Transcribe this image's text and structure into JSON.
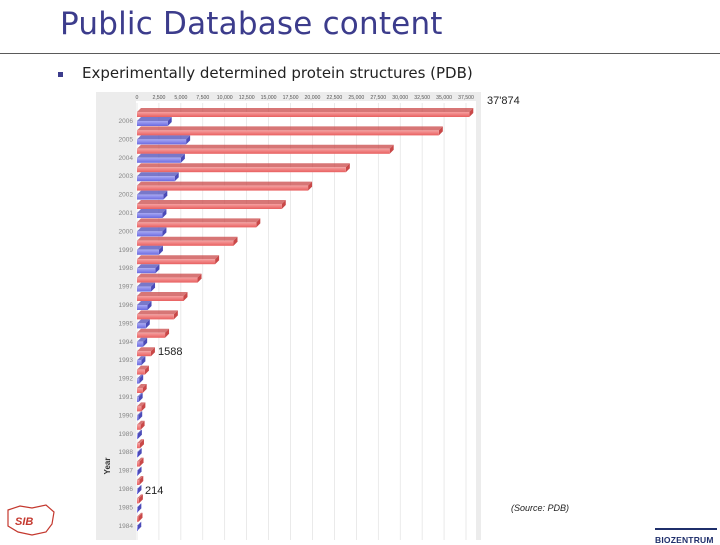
{
  "slide": {
    "title": "Public Database content",
    "bullet": "Experimentally determined protein structures (PDB)"
  },
  "annotations": {
    "max_label": "37'874",
    "mid_label": "1588",
    "low_label": "214",
    "source": "(Source: PDB)"
  },
  "logos": {
    "left": "SIB",
    "right": "BIOZENTRUM"
  },
  "colors": {
    "title": "#3c3c8c",
    "total_series": "#f06e6e",
    "yearly_series": "#7a7ae6"
  },
  "chart_data": {
    "type": "bar",
    "orientation": "horizontal",
    "title": "",
    "xlabel": "",
    "ylabel": "Year",
    "xlim": [
      0,
      37500
    ],
    "x_ticks": [
      "0",
      "2,500",
      "5,000",
      "7,500",
      "10,000",
      "12,500",
      "15,000",
      "17,500",
      "20,000",
      "22,500",
      "25,000",
      "27,500",
      "30,000",
      "32,500",
      "35,000",
      "37,500"
    ],
    "categories": [
      "2006",
      "2005",
      "2004",
      "2003",
      "2002",
      "2001",
      "2000",
      "1999",
      "1998",
      "1997",
      "1996",
      "1995",
      "1994",
      "1993",
      "1992",
      "1991",
      "1990",
      "1989",
      "1988",
      "1987",
      "1986",
      "1985",
      "1984"
    ],
    "series": [
      {
        "name": "",
        "color_key": "total_series",
        "values": [
          37874,
          34400,
          28800,
          23800,
          19500,
          16500,
          13600,
          11000,
          8900,
          6900,
          5300,
          4200,
          3200,
          1588,
          900,
          650,
          500,
          410,
          340,
          290,
          260,
          214,
          170
        ]
      },
      {
        "name": "",
        "color_key": "yearly_series",
        "values": [
          3500,
          5600,
          5000,
          4300,
          3000,
          2900,
          2900,
          2500,
          2100,
          1600,
          1200,
          1000,
          700,
          500,
          250,
          190,
          140,
          100,
          80,
          60,
          50,
          40,
          30
        ]
      }
    ],
    "grid": true,
    "legend": "none"
  }
}
